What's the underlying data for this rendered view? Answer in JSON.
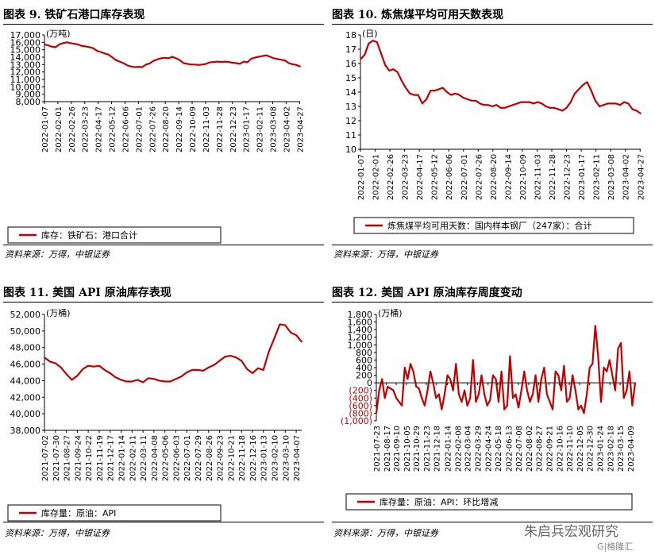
{
  "panels": [
    {
      "title": "图表 9. 铁矿石港口库存表现",
      "source": "资料来源：万得，中银证券",
      "chart_data": {
        "type": "line",
        "unit": "(万吨)",
        "ylim": [
          8000,
          17000
        ],
        "yticks": [
          8000,
          9000,
          10000,
          11000,
          12000,
          13000,
          14000,
          15000,
          16000,
          17000
        ],
        "ytick_labels": [
          "8,000",
          "9,000",
          "10,000",
          "11,000",
          "12,000",
          "13,000",
          "14,000",
          "15,000",
          "16,000",
          "17,000"
        ],
        "xtick_labels": [
          "2022-01-07",
          "2022-02-01",
          "2022-02-26",
          "2022-03-23",
          "2022-04-17",
          "2022-05-12",
          "2022-06-06",
          "2022-07-01",
          "2022-07-26",
          "2022-08-20",
          "2022-09-14",
          "2022-10-09",
          "2022-11-03",
          "2022-11-28",
          "2022-12-23",
          "2023-01-17",
          "2023-02-11",
          "2023-03-08",
          "2023-04-02",
          "2023-04-27"
        ],
        "series": [
          {
            "name": "库存：铁矿石：港口合计",
            "color": "#c00000",
            "x": [
              "2022-01-07",
              "2022-01-14",
              "2022-01-21",
              "2022-01-28",
              "2022-02-04",
              "2022-02-11",
              "2022-02-18",
              "2022-02-25",
              "2022-03-04",
              "2022-03-11",
              "2022-03-18",
              "2022-03-25",
              "2022-04-01",
              "2022-04-08",
              "2022-04-15",
              "2022-04-22",
              "2022-04-29",
              "2022-05-06",
              "2022-05-13",
              "2022-05-20",
              "2022-05-27",
              "2022-06-03",
              "2022-06-10",
              "2022-06-17",
              "2022-06-24",
              "2022-07-01",
              "2022-07-08",
              "2022-07-15",
              "2022-07-22",
              "2022-07-29",
              "2022-08-05",
              "2022-08-12",
              "2022-08-19",
              "2022-08-26",
              "2022-09-02",
              "2022-09-09",
              "2022-09-16",
              "2022-09-23",
              "2022-09-30",
              "2022-10-07",
              "2022-10-14",
              "2022-10-21",
              "2022-10-28",
              "2022-11-04",
              "2022-11-11",
              "2022-11-18",
              "2022-11-25",
              "2022-12-02",
              "2022-12-09",
              "2022-12-16",
              "2022-12-23",
              "2022-12-30",
              "2023-01-06",
              "2023-01-13",
              "2023-01-20",
              "2023-01-27",
              "2023-02-03",
              "2023-02-10",
              "2023-02-17",
              "2023-02-24",
              "2023-03-03",
              "2023-03-10",
              "2023-03-17",
              "2023-03-24",
              "2023-03-31",
              "2023-04-07",
              "2023-04-14",
              "2023-04-21",
              "2023-04-28"
            ],
            "values": [
              15700,
              15600,
              15400,
              15350,
              15750,
              15900,
              16000,
              15900,
              15800,
              15700,
              15500,
              15450,
              15350,
              15200,
              14850,
              14700,
              14500,
              14350,
              14000,
              13600,
              13400,
              13200,
              12900,
              12750,
              12650,
              12700,
              12650,
              13000,
              13150,
              13500,
              13700,
              13850,
              13900,
              13850,
              14050,
              13850,
              13600,
              13200,
              13100,
              13000,
              13000,
              12950,
              13000,
              13100,
              13300,
              13350,
              13400,
              13350,
              13400,
              13350,
              13250,
              13200,
              13100,
              13400,
              13300,
              13800,
              13950,
              14050,
              14150,
              14250,
              14050,
              13850,
              13750,
              13650,
              13550,
              13200,
              13050,
              12950,
              12750
            ]
          }
        ]
      }
    },
    {
      "title": "图表 10. 炼焦煤平均可用天数表现",
      "source": "资料来源：万得，中银证券",
      "chart_data": {
        "type": "line",
        "unit": "(日)",
        "ylim": [
          10,
          18
        ],
        "yticks": [
          10,
          11,
          12,
          13,
          14,
          15,
          16,
          17,
          18
        ],
        "ytick_labels": [
          "10",
          "11",
          "12",
          "13",
          "14",
          "15",
          "16",
          "17",
          "18"
        ],
        "xtick_labels": [
          "2022-01-07",
          "2022-02-01",
          "2022-02-26",
          "2022-03-23",
          "2022-04-17",
          "2022-05-12",
          "2022-06-06",
          "2022-07-01",
          "2022-07-26",
          "2022-08-20",
          "2022-09-14",
          "2022-10-09",
          "2022-11-03",
          "2022-11-28",
          "2022-12-23",
          "2023-01-17",
          "2023-02-11",
          "2023-03-08",
          "2023-04-02",
          "2023-04-27"
        ],
        "series": [
          {
            "name": "炼焦煤平均可用天数：国内样本钢厂（247家）：合计",
            "color": "#c00000",
            "x": [
              "2022-01-07",
              "2022-01-14",
              "2022-01-21",
              "2022-01-28",
              "2022-02-04",
              "2022-02-11",
              "2022-02-18",
              "2022-02-25",
              "2022-03-04",
              "2022-03-11",
              "2022-03-18",
              "2022-03-25",
              "2022-04-01",
              "2022-04-08",
              "2022-04-15",
              "2022-04-22",
              "2022-04-29",
              "2022-05-06",
              "2022-05-13",
              "2022-05-20",
              "2022-05-27",
              "2022-06-03",
              "2022-06-10",
              "2022-06-17",
              "2022-06-24",
              "2022-07-01",
              "2022-07-08",
              "2022-07-15",
              "2022-07-22",
              "2022-07-29",
              "2022-08-05",
              "2022-08-12",
              "2022-08-19",
              "2022-08-26",
              "2022-09-02",
              "2022-09-09",
              "2022-09-16",
              "2022-09-23",
              "2022-09-30",
              "2022-10-07",
              "2022-10-14",
              "2022-10-21",
              "2022-10-28",
              "2022-11-04",
              "2022-11-11",
              "2022-11-18",
              "2022-11-25",
              "2022-12-02",
              "2022-12-09",
              "2022-12-16",
              "2022-12-23",
              "2022-12-30",
              "2023-01-06",
              "2023-01-13",
              "2023-01-20",
              "2023-01-27",
              "2023-02-03",
              "2023-02-10",
              "2023-02-17",
              "2023-02-24",
              "2023-03-03",
              "2023-03-10",
              "2023-03-17",
              "2023-03-24",
              "2023-03-31",
              "2023-04-07",
              "2023-04-14",
              "2023-04-21",
              "2023-04-28"
            ],
            "values": [
              16.3,
              16.6,
              17.4,
              17.6,
              17.5,
              16.7,
              15.9,
              15.5,
              15.6,
              15.4,
              14.8,
              14.3,
              13.9,
              13.8,
              13.8,
              13.2,
              13.5,
              14.1,
              14.1,
              14.2,
              14.3,
              14.0,
              13.8,
              13.9,
              13.8,
              13.6,
              13.5,
              13.4,
              13.4,
              13.2,
              13.1,
              13.1,
              13.0,
              13.1,
              12.9,
              12.9,
              13.0,
              13.1,
              13.2,
              13.3,
              13.3,
              13.3,
              13.2,
              13.3,
              13.2,
              13.0,
              12.9,
              12.9,
              12.8,
              12.7,
              12.9,
              13.3,
              13.9,
              14.2,
              14.5,
              14.7,
              14.1,
              13.4,
              13.0,
              13.1,
              13.2,
              13.2,
              13.2,
              13.1,
              13.3,
              13.2,
              12.8,
              12.7,
              12.5
            ]
          }
        ]
      }
    },
    {
      "title": "图表 11. 美国 API 原油库存表现",
      "source": "资料来源：万得，中银证券",
      "chart_data": {
        "type": "line",
        "unit": "(万桶)",
        "ylim": [
          38000,
          52000
        ],
        "yticks": [
          38000,
          40000,
          42000,
          44000,
          46000,
          48000,
          50000,
          52000
        ],
        "ytick_labels": [
          "38,000",
          "40,000",
          "42,000",
          "44,000",
          "46,000",
          "48,000",
          "50,000",
          "52,000"
        ],
        "xtick_labels": [
          "2021-07-02",
          "2021-07-30",
          "2021-08-27",
          "2021-09-24",
          "2021-10-22",
          "2021-11-19",
          "2021-12-17",
          "2022-01-14",
          "2022-02-11",
          "2022-03-11",
          "2022-04-08",
          "2022-05-06",
          "2022-06-03",
          "2022-07-01",
          "2022-07-29",
          "2022-08-26",
          "2022-09-23",
          "2022-10-21",
          "2022-11-18",
          "2022-12-16",
          "2023-01-13",
          "2023-02-10",
          "2023-03-10",
          "2023-04-07"
        ],
        "series": [
          {
            "name": "库存量：原油：API",
            "color": "#c00000",
            "x": [
              "2021-07-02",
              "2021-07-16",
              "2021-07-30",
              "2021-08-13",
              "2021-08-27",
              "2021-09-10",
              "2021-09-24",
              "2021-10-08",
              "2021-10-22",
              "2021-11-05",
              "2021-11-19",
              "2021-12-03",
              "2021-12-17",
              "2021-12-31",
              "2022-01-14",
              "2022-01-28",
              "2022-02-11",
              "2022-02-25",
              "2022-03-11",
              "2022-03-25",
              "2022-04-08",
              "2022-04-22",
              "2022-05-06",
              "2022-05-20",
              "2022-06-03",
              "2022-06-17",
              "2022-07-01",
              "2022-07-15",
              "2022-07-29",
              "2022-08-12",
              "2022-08-26",
              "2022-09-09",
              "2022-09-23",
              "2022-10-07",
              "2022-10-21",
              "2022-11-04",
              "2022-11-18",
              "2022-12-02",
              "2022-12-16",
              "2022-12-30",
              "2023-01-13",
              "2023-01-27",
              "2023-02-10",
              "2023-02-24",
              "2023-03-10",
              "2023-03-24",
              "2023-04-07",
              "2023-04-21"
            ],
            "values": [
              46800,
              46300,
              46100,
              45600,
              44800,
              44100,
              44600,
              45400,
              45800,
              45700,
              45800,
              45300,
              44900,
              44400,
              44100,
              43900,
              43900,
              44100,
              43800,
              44300,
              44200,
              44000,
              43900,
              43900,
              44200,
              44500,
              45000,
              45300,
              45300,
              45200,
              45600,
              45900,
              46400,
              46900,
              47000,
              46800,
              46400,
              45400,
              44900,
              45500,
              45300,
              47500,
              49100,
              50800,
              50700,
              49800,
              49500,
              48700
            ]
          }
        ]
      }
    },
    {
      "title": "图表 12. 美国 API 原油库存周度变动",
      "source": "资料来源：万得，中银证券",
      "chart_data": {
        "type": "line",
        "unit": "(万桶)",
        "ylim": [
          -1000,
          1800
        ],
        "yticks": [
          -1000,
          -800,
          -600,
          -400,
          -200,
          0,
          200,
          400,
          600,
          800,
          1000,
          1200,
          1400,
          1600,
          1800
        ],
        "ytick_labels": [
          "(1,000)",
          "(800)",
          "(600)",
          "(400)",
          "(200)",
          "0",
          "200",
          "400",
          "600",
          "800",
          "1,000",
          "1,200",
          "1,400",
          "1,600",
          "1,800"
        ],
        "negative_tick_color": "#c00000",
        "xtick_labels": [
          "2021-07-23",
          "2021-08-17",
          "2021-09-10",
          "2021-10-05",
          "2021-10-29",
          "2021-11-23",
          "2021-12-18",
          "2022-01-14",
          "2022-02-08",
          "2022-03-04",
          "2022-03-29",
          "2022-04-24",
          "2022-05-18",
          "2022-06-13",
          "2022-07-08",
          "2022-08-02",
          "2022-08-27",
          "2022-09-21",
          "2022-10-16",
          "2022-11-10",
          "2022-12-05",
          "2022-12-30",
          "2023-01-24",
          "2023-02-18",
          "2023-03-15",
          "2023-04-09"
        ],
        "series": [
          {
            "name": "库存量：原油：API：环比增减",
            "color": "#c00000",
            "x": [
              "2021-07-23",
              "2021-07-30",
              "2021-08-06",
              "2021-08-13",
              "2021-08-20",
              "2021-08-27",
              "2021-09-03",
              "2021-09-10",
              "2021-09-17",
              "2021-09-24",
              "2021-10-01",
              "2021-10-08",
              "2021-10-15",
              "2021-10-22",
              "2021-10-29",
              "2021-11-05",
              "2021-11-12",
              "2021-11-19",
              "2021-11-26",
              "2021-12-03",
              "2021-12-10",
              "2021-12-17",
              "2021-12-24",
              "2021-12-31",
              "2022-01-07",
              "2022-01-14",
              "2022-01-21",
              "2022-01-28",
              "2022-02-04",
              "2022-02-11",
              "2022-02-18",
              "2022-02-25",
              "2022-03-04",
              "2022-03-11",
              "2022-03-18",
              "2022-03-25",
              "2022-04-01",
              "2022-04-08",
              "2022-04-15",
              "2022-04-22",
              "2022-04-29",
              "2022-05-06",
              "2022-05-13",
              "2022-05-20",
              "2022-05-27",
              "2022-06-03",
              "2022-06-10",
              "2022-06-17",
              "2022-06-24",
              "2022-07-01",
              "2022-07-08",
              "2022-07-15",
              "2022-07-22",
              "2022-07-29",
              "2022-08-05",
              "2022-08-12",
              "2022-08-19",
              "2022-08-26",
              "2022-09-02",
              "2022-09-09",
              "2022-09-16",
              "2022-09-23",
              "2022-09-30",
              "2022-10-07",
              "2022-10-14",
              "2022-10-21",
              "2022-10-28",
              "2022-11-04",
              "2022-11-11",
              "2022-11-18",
              "2022-11-25",
              "2022-12-02",
              "2022-12-09",
              "2022-12-16",
              "2022-12-23",
              "2022-12-30",
              "2023-01-06",
              "2023-01-13",
              "2023-01-20",
              "2023-01-27",
              "2023-02-03",
              "2023-02-10",
              "2023-02-17",
              "2023-02-24",
              "2023-03-03",
              "2023-03-10",
              "2023-03-17",
              "2023-03-24",
              "2023-03-31",
              "2023-04-07",
              "2023-04-14",
              "2023-04-21"
            ],
            "values": [
              -800,
              -200,
              100,
              -400,
              -100,
              -150,
              -200,
              -400,
              -500,
              -600,
              400,
              100,
              500,
              300,
              -100,
              -150,
              -400,
              -600,
              -200,
              300,
              0,
              -400,
              -300,
              -700,
              -300,
              200,
              100,
              -200,
              500,
              -300,
              -500,
              -200,
              -600,
              -400,
              600,
              -500,
              -300,
              200,
              -300,
              -600,
              -450,
              200,
              100,
              -500,
              300,
              -700,
              -600,
              700,
              -400,
              -300,
              -650,
              -200,
              300,
              -200,
              -500,
              -300,
              200,
              -500,
              100,
              400,
              -300,
              -500,
              -700,
              300,
              200,
              -200,
              450,
              -500,
              -400,
              200,
              -200,
              -700,
              -600,
              -800,
              -300,
              400,
              500,
              1500,
              700,
              -500,
              400,
              300,
              600,
              200,
              -200,
              900,
              1050,
              -400,
              -200,
              300,
              -600,
              0
            ]
          }
        ]
      }
    }
  ],
  "watermark": {
    "main": "朱启兵宏观研究",
    "sub": "G|格隆汇"
  }
}
